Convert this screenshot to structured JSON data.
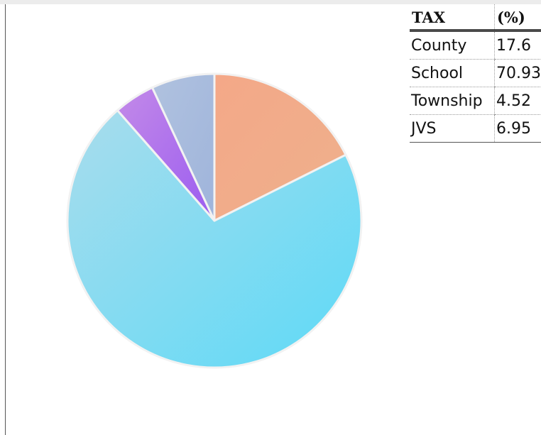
{
  "chart_data": {
    "type": "pie",
    "title": "",
    "slices": [
      {
        "label": "County",
        "value": 17.6,
        "color_start": "#f4a888",
        "color_end": "#eeb08c"
      },
      {
        "label": "School",
        "value": 70.93,
        "color_start": "#a9dcec",
        "color_end": "#5ddaf7"
      },
      {
        "label": "Township",
        "value": 4.52,
        "color_start": "#c38ae8",
        "color_end": "#9b5cf0"
      },
      {
        "label": "JVS",
        "value": 6.95,
        "color_start": "#b0c2df",
        "color_end": "#9fb4db"
      }
    ]
  },
  "legend": {
    "header_name": "TAX",
    "header_value": "(%)",
    "rows": [
      {
        "name": "County",
        "value": "17.6"
      },
      {
        "name": "School",
        "value": "70.93"
      },
      {
        "name": "Township",
        "value": "4.52"
      },
      {
        "name": "JVS",
        "value": "6.95"
      }
    ]
  }
}
